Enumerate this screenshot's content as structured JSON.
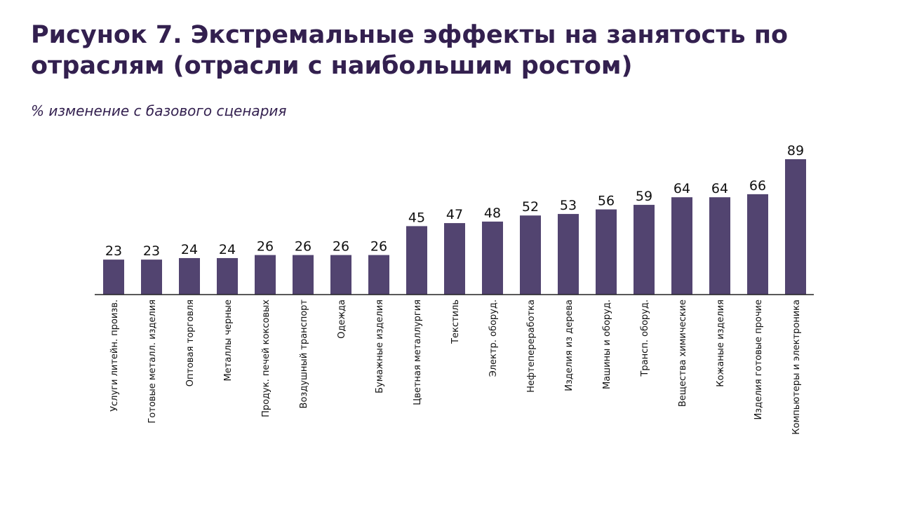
{
  "chart_data": {
    "type": "bar",
    "title": "Рисунок 7. Экстремальные эффекты на занятость по отраслям (отрасли с наибольшим ростом)",
    "subtitle": "% изменение с базового сценария",
    "xlabel": "",
    "ylabel": "",
    "ylim": [
      0,
      89
    ],
    "grid": false,
    "categories": [
      "Услуги литейн. произв.",
      "Готовые металл. изделия",
      "Оптовая торговля",
      "Металлы черные",
      "Продук. печей коксовых",
      "Воздушный транспорт",
      "Одежда",
      "Бумажные изделия",
      "Цветная металлургия",
      "Текстиль",
      "Электр. оборуд.",
      "Нефтепереработка",
      "Изделия из дерева",
      "Машины и оборуд.",
      "Трансп. оборуд.",
      "Вещества химические",
      "Кожаные изделия",
      "Изделия готовые прочие",
      "Компьютеры и электроника"
    ],
    "values": [
      23,
      23,
      24,
      24,
      26,
      26,
      26,
      26,
      45,
      47,
      48,
      52,
      53,
      56,
      59,
      64,
      64,
      66,
      89
    ],
    "bar_color": "#524470"
  }
}
